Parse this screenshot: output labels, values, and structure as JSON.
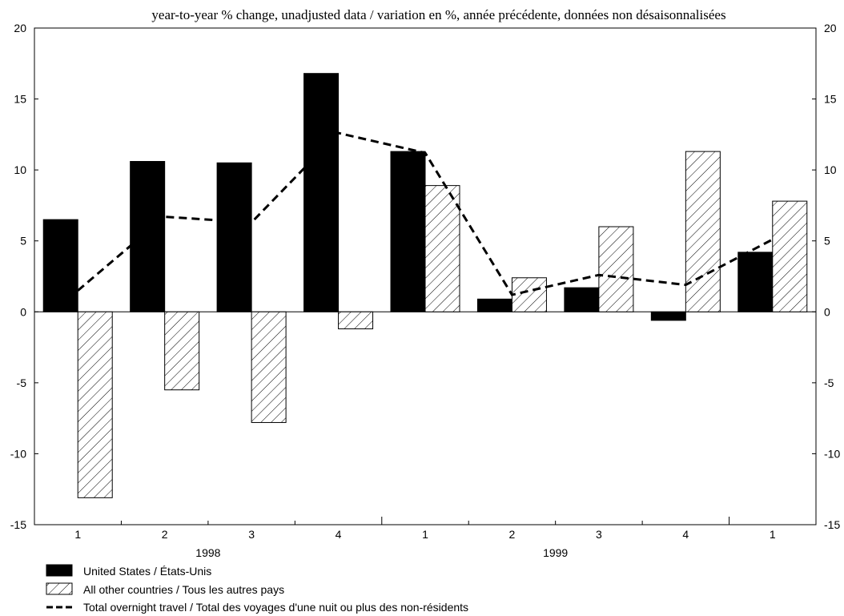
{
  "chart_data": {
    "type": "bar",
    "title": "year-to-year % change, unadjusted data / variation en %, année précédente, données non désaisonnalisées",
    "categories": [
      "1",
      "2",
      "3",
      "4",
      "1",
      "2",
      "3",
      "4",
      "1"
    ],
    "year_labels": [
      {
        "label": "1998",
        "center_index": 1.5
      },
      {
        "label": "1999",
        "center_index": 5.5
      }
    ],
    "year_separators_after_index": [
      3,
      7
    ],
    "ylim": [
      -15,
      20
    ],
    "yticks": [
      -15,
      -10,
      -5,
      0,
      5,
      10,
      15,
      20
    ],
    "series": [
      {
        "name": "United States / États-Unis",
        "kind": "bar",
        "style": "solid-black",
        "values": [
          6.5,
          10.6,
          10.5,
          16.8,
          11.3,
          0.9,
          1.7,
          -0.6,
          4.2
        ]
      },
      {
        "name": "All other countries / Tous les autres pays",
        "kind": "bar",
        "style": "hatched",
        "values": [
          -13.1,
          -5.5,
          -7.8,
          -1.2,
          8.9,
          2.4,
          6.0,
          11.3,
          7.8
        ]
      },
      {
        "name": "Total overnight travel / Total des voyages d'une nuit ou plus des non-résidents",
        "kind": "line",
        "style": "dashed-black",
        "values": [
          1.5,
          6.7,
          6.3,
          12.6,
          11.2,
          1.2,
          2.6,
          1.9,
          5.1
        ]
      }
    ],
    "legend_position": "bottom-left",
    "grid": false,
    "colors": {
      "bar_solid": "#000000",
      "hatch": "#000000",
      "background": "#ffffff"
    }
  }
}
